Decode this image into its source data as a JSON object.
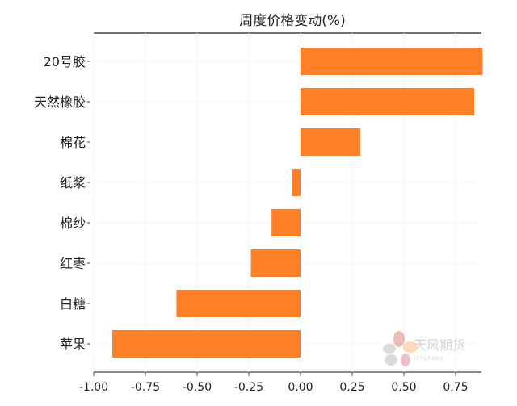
{
  "chart_data": {
    "type": "bar",
    "orientation": "horizontal",
    "title": "周度价格变动(%)",
    "xlabel": "",
    "ylabel": "",
    "categories": [
      "20号胶",
      "天然橡胶",
      "棉花",
      "纸浆",
      "棉纱",
      "红枣",
      "白糖",
      "苹果"
    ],
    "values": [
      0.88,
      0.84,
      0.29,
      -0.04,
      -0.14,
      -0.24,
      -0.6,
      -0.91
    ],
    "xlim": [
      -1.0,
      0.875
    ],
    "xticks": [
      -1.0,
      -0.75,
      -0.5,
      -0.25,
      0.0,
      0.25,
      0.5,
      0.75
    ],
    "xtick_labels": [
      "-1.00",
      "-0.75",
      "-0.50",
      "-0.25",
      "0.00",
      "0.25",
      "0.50",
      "0.75"
    ],
    "grid": true,
    "bar_color": "#FF7F27"
  },
  "watermark": {
    "text": "天风期货",
    "subtext": "TF FUTURES"
  }
}
